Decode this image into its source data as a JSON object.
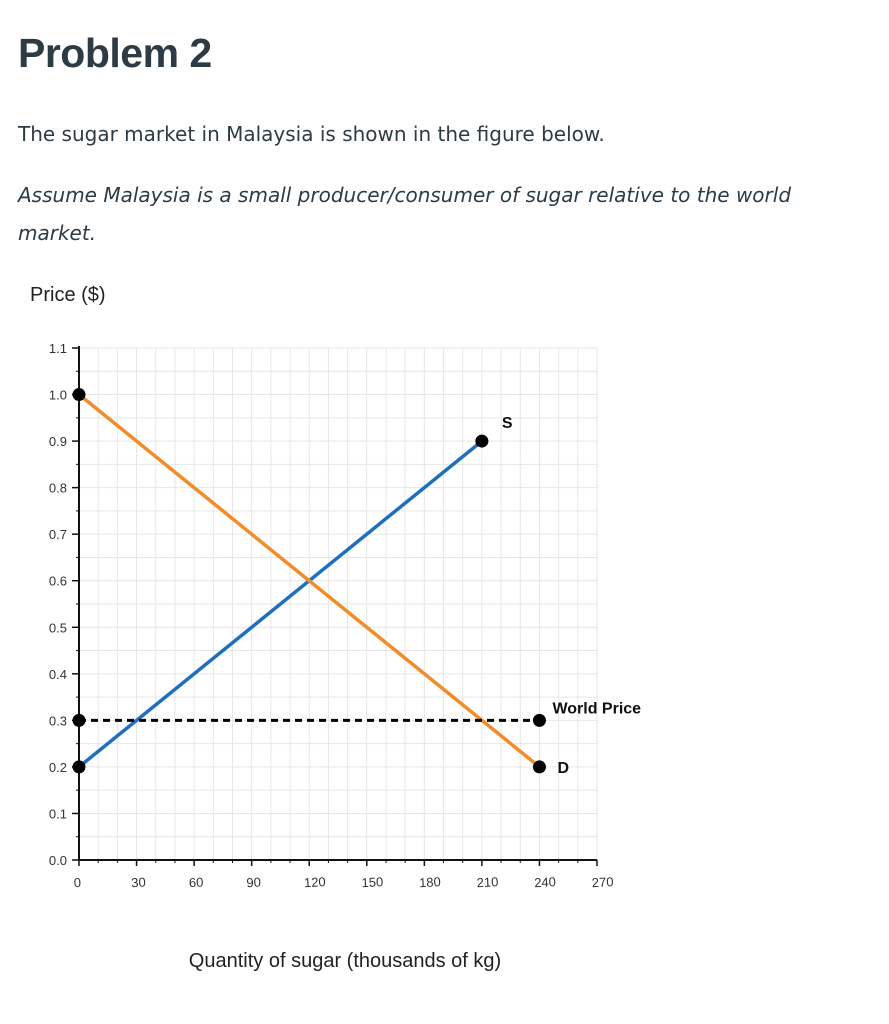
{
  "problem": {
    "title": "Problem 2",
    "intro": "The sugar market in Malaysia is shown in the figure below.",
    "assumption": "Assume Malaysia is a small producer/consumer of sugar relative to the world market."
  },
  "colors": {
    "supply": "#1f6fbf",
    "demand": "#f28c28",
    "world_price": "#000000",
    "grid": "#e6e6e6",
    "text": "#2d3b45"
  },
  "chart_data": {
    "type": "line",
    "title": "",
    "xlabel": "Quantity of sugar (thousands of kg)",
    "ylabel": "Price ($)",
    "xlim": [
      0,
      270
    ],
    "ylim": [
      0,
      1.1
    ],
    "x_ticks": [
      "0",
      "30",
      "60",
      "90",
      "120",
      "150",
      "180",
      "210",
      "240",
      "270"
    ],
    "y_ticks": [
      "0.0",
      "0.1",
      "0.2",
      "0.3",
      "0.4",
      "0.5",
      "0.6",
      "0.7",
      "0.8",
      "0.9",
      "1.0",
      "1.1"
    ],
    "grid": true,
    "series": [
      {
        "name": "S",
        "style": "solid",
        "points": [
          [
            0,
            0.2
          ],
          [
            210,
            0.9
          ]
        ]
      },
      {
        "name": "D",
        "style": "solid",
        "points": [
          [
            0,
            1.0
          ],
          [
            240,
            0.2
          ]
        ]
      },
      {
        "name": "World Price",
        "style": "dashed",
        "points": [
          [
            0,
            0.3
          ],
          [
            240,
            0.3
          ]
        ]
      }
    ],
    "annotations": [
      "S",
      "D",
      "World Price"
    ]
  }
}
